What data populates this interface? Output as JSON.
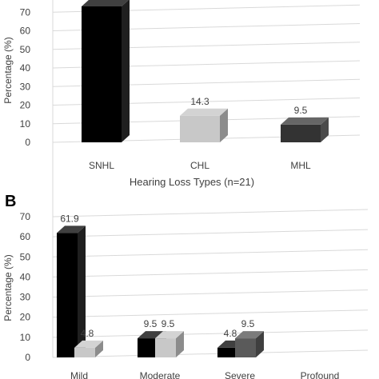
{
  "chart_data": [
    {
      "panel": "",
      "type": "bar",
      "style": "3d-column",
      "categories": [
        "SNHL",
        "CHL",
        "MHL"
      ],
      "series": [
        {
          "values": [
            76.2,
            14.3,
            9.5
          ],
          "point_colors": [
            "#000000",
            "#c8c8c8",
            "#333333"
          ]
        }
      ],
      "data_labels": [
        "",
        "14.3",
        "9.5"
      ],
      "title": "",
      "xlabel": "Hearing Loss Types (n=21)",
      "ylabel": "Percentage (%)",
      "ylim": [
        0,
        80
      ],
      "yticks": [
        "0",
        "10",
        "20",
        "30",
        "40",
        "50",
        "60",
        "70"
      ],
      "grid": true,
      "legend": "none"
    },
    {
      "panel": "B",
      "type": "bar",
      "style": "3d-column",
      "categories": [
        "Mild",
        "Moderate",
        "Severe",
        "Profound"
      ],
      "series": [
        {
          "values": [
            61.9,
            9.5,
            4.8,
            0
          ],
          "color": "#000000"
        },
        {
          "values": [
            4.8,
            9.5,
            9.5,
            0
          ],
          "point_colors": [
            "#c8c8c8",
            "#c8c8c8",
            "#5a5a5a",
            "#5a5a5a"
          ]
        }
      ],
      "data_labels": [
        [
          "61.9",
          "9.5",
          "4.8",
          ""
        ],
        [
          "4.8",
          "9.5",
          "9.5",
          ""
        ]
      ],
      "title": "",
      "xlabel": "",
      "ylabel": "Percentage (%)",
      "ylim": [
        0,
        70
      ],
      "yticks": [
        "0",
        "10",
        "20",
        "30",
        "40",
        "50",
        "60",
        "70"
      ],
      "grid": true,
      "legend": "none"
    }
  ]
}
